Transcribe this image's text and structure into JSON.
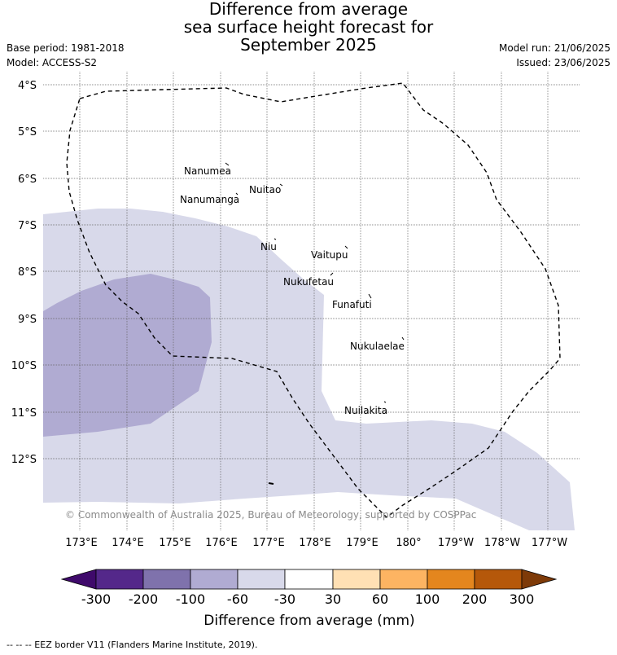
{
  "title": {
    "line1": "Difference from average",
    "line2": "sea surface height forecast for",
    "line3": "September 2025"
  },
  "meta": {
    "base_period": "Base period: 1981-2018",
    "model": "Model: ACCESS-S2",
    "model_run": "Model run: 21/06/2025",
    "issued": "Issued: 23/06/2025"
  },
  "map": {
    "lat_ticks": [
      "4°S",
      "5°S",
      "6°S",
      "7°S",
      "8°S",
      "9°S",
      "10°S",
      "11°S",
      "12°S"
    ],
    "lon_ticks": [
      "173°E",
      "174°E",
      "175°E",
      "176°E",
      "177°E",
      "178°E",
      "179°E",
      "180°",
      "179°W",
      "178°W",
      "177°W"
    ],
    "islands": [
      "Nanumea",
      "Nuitao",
      "Nanumanga",
      "Niu",
      "Vaitupu",
      "Nukufetau",
      "Funafuti",
      "Nukulaelae",
      "Nuilakita"
    ],
    "copyright": "© Commonwealth of Australia 2025, Bureau of Meteorology, supported by COSPPac",
    "fill_colors": {
      "light": "#d8d9ea",
      "medium": "#b0abd2"
    },
    "eez_line_color": "#000000"
  },
  "colorbar": {
    "ticks": [
      "-300",
      "-200",
      "-100",
      "-60",
      "-30",
      "30",
      "60",
      "100",
      "200",
      "300"
    ],
    "colors": [
      "#3f0a6b",
      "#54288a",
      "#7f72ac",
      "#b0abd2",
      "#d8d9ea",
      "#ffffff",
      "#ffe0b4",
      "#fdb462",
      "#e4861e",
      "#b5580a",
      "#7e3a08"
    ],
    "label": "Difference from average (mm)"
  },
  "footer": "-- -- -- EEZ border V11 (Flanders Marine Institute, 2019)."
}
